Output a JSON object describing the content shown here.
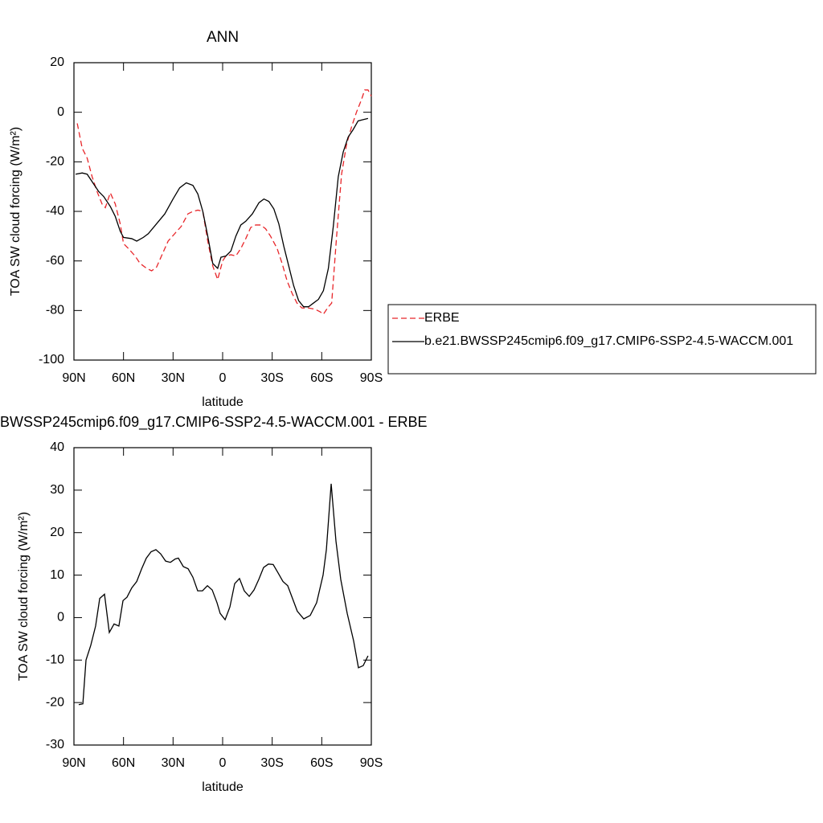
{
  "chart_data": [
    {
      "type": "line",
      "title": "ANN",
      "xlabel": "latitude",
      "ylabel": "TOA SW cloud forcing (W/m²)",
      "xlim": [
        90,
        -90
      ],
      "xticks": [
        {
          "value": 90,
          "label": "90N"
        },
        {
          "value": 60,
          "label": "60N"
        },
        {
          "value": 30,
          "label": "30N"
        },
        0,
        {
          "value": -30,
          "label": "30S"
        },
        {
          "value": -60,
          "label": "60S"
        },
        {
          "value": -90,
          "label": "90S"
        }
      ],
      "ylim": [
        -100,
        20
      ],
      "yticks": [
        -100,
        -80,
        -60,
        -40,
        -20,
        0,
        20
      ],
      "legend": "right",
      "series": [
        {
          "name": "ERBE",
          "color": "#e8262a",
          "line_style": "dashed",
          "x": [
            88,
            85,
            82,
            79,
            76,
            73,
            71,
            68,
            65,
            62,
            60,
            57,
            53,
            50,
            46,
            43,
            40,
            37,
            33,
            29,
            25,
            21,
            18,
            15,
            12,
            9,
            6,
            3,
            0,
            -2,
            -5,
            -8,
            -11,
            -14,
            -17,
            -20,
            -23,
            -26,
            -29,
            -33,
            -36,
            -39,
            -42,
            -45,
            -48,
            -52,
            -56,
            -59,
            -61,
            -64,
            -66,
            -69,
            -72,
            -75,
            -78,
            -81,
            -84,
            -86,
            -88,
            -90
          ],
          "values": [
            -4.5,
            -14.5,
            -18.5,
            -26,
            -32,
            -37,
            -38.5,
            -32.5,
            -37,
            -45,
            -53,
            -55,
            -58,
            -61,
            -63,
            -64,
            -62.5,
            -58,
            -52,
            -49,
            -46,
            -41,
            -40,
            -39.5,
            -40,
            -52,
            -62,
            -67.5,
            -60,
            -58,
            -57.5,
            -58,
            -55,
            -51,
            -46.5,
            -45.5,
            -45.5,
            -47,
            -50,
            -55,
            -61,
            -68,
            -73,
            -77,
            -79,
            -79,
            -79.5,
            -80.5,
            -81.5,
            -78.5,
            -77,
            -50,
            -25,
            -13,
            -6,
            0,
            5,
            9,
            9,
            6.5
          ]
        },
        {
          "name": "b.e21.BWSSP245cmip6.f09_g17.CMIP6-SSP2-4.5-WACCM.001",
          "color": "#000000",
          "line_style": "solid",
          "x": [
            89,
            85,
            82,
            78,
            75,
            72,
            68,
            65,
            62,
            60,
            55,
            52,
            48,
            45,
            40,
            35,
            30,
            26,
            22,
            18,
            15,
            12,
            9,
            6,
            3,
            1,
            -2,
            -5,
            -8,
            -11,
            -14,
            -18,
            -22,
            -25,
            -28,
            -31,
            -34,
            -37,
            -40,
            -43,
            -46,
            -49,
            -52,
            -55,
            -58,
            -61,
            -64,
            -67,
            -70,
            -73,
            -76,
            -79,
            -82,
            -85,
            -88
          ],
          "values": [
            -25,
            -24.5,
            -25,
            -29,
            -32,
            -34,
            -38,
            -42,
            -48,
            -50.5,
            -51,
            -52,
            -50.5,
            -49,
            -45,
            -41,
            -35,
            -30.5,
            -28.5,
            -29.5,
            -33,
            -40,
            -50,
            -61,
            -63,
            -58.5,
            -58,
            -56,
            -50,
            -45.5,
            -44,
            -41,
            -36.5,
            -35,
            -36,
            -39,
            -45,
            -54,
            -62,
            -70,
            -76,
            -78.5,
            -78.5,
            -77,
            -75.5,
            -72,
            -63,
            -46,
            -26,
            -16,
            -10,
            -7,
            -3.5,
            -3,
            -2.5
          ]
        }
      ]
    },
    {
      "type": "line",
      "title": "BWSSP245cmip6.f09_g17.CMIP6-SSP2-4.5-WACCM.001 - ERBE",
      "xlabel": "latitude",
      "ylabel": "TOA SW cloud forcing (W/m²)",
      "xlim": [
        90,
        -90
      ],
      "xticks": [
        {
          "value": 90,
          "label": "90N"
        },
        {
          "value": 60,
          "label": "60N"
        },
        {
          "value": 30,
          "label": "30N"
        },
        0,
        {
          "value": -30,
          "label": "30S"
        },
        {
          "value": -60,
          "label": "60S"
        },
        {
          "value": -90,
          "label": "90S"
        }
      ],
      "ylim": [
        -30,
        40
      ],
      "yticks": [
        -30,
        -20,
        -10,
        0,
        10,
        20,
        30,
        40
      ],
      "series": [
        {
          "color": "#000000",
          "line_style": "solid",
          "x": [
            87.1,
            84.6,
            82.7,
            79.8,
            76.9,
            74.4,
            71.5,
            68.6,
            65.7,
            62.8,
            60.3,
            57.9,
            55,
            52,
            49,
            46.2,
            43.3,
            40.4,
            37.5,
            34.5,
            31.6,
            28.7,
            26.8,
            23.8,
            20.9,
            18,
            15.1,
            12.2,
            9.2,
            6.3,
            3.4,
            1.5,
            -1.5,
            -4.4,
            -7.3,
            -10.2,
            -13.1,
            -16.1,
            -19,
            -21.9,
            -24.8,
            -27.7,
            -30.6,
            -33.6,
            -36.5,
            -39.4,
            -42.3,
            -45.2,
            -49.1,
            -53,
            -56.9,
            -60.8,
            -62.8,
            -65.7,
            -68.6,
            -71.5,
            -75.4,
            -79.3,
            -82.2,
            -85.1,
            -88
          ],
          "values": [
            -20.5,
            -20.3,
            -10,
            -6.5,
            -2,
            4.5,
            5.5,
            -3.5,
            -1.5,
            -2,
            4,
            4.8,
            7,
            8.5,
            11.5,
            14,
            15.5,
            16,
            15,
            13.3,
            13,
            13.8,
            14,
            12,
            11.5,
            9.5,
            6.3,
            6.3,
            7.5,
            6.5,
            3.5,
            1,
            -0.5,
            2.5,
            8,
            9.2,
            6.3,
            5,
            6.5,
            9,
            11.8,
            12.6,
            12.5,
            10.5,
            8.5,
            7.5,
            4.5,
            1.5,
            -0.3,
            0.5,
            3.5,
            10,
            16,
            31.5,
            18,
            9,
            1,
            -5.5,
            -11.8,
            -11.3,
            -9
          ]
        }
      ]
    }
  ]
}
